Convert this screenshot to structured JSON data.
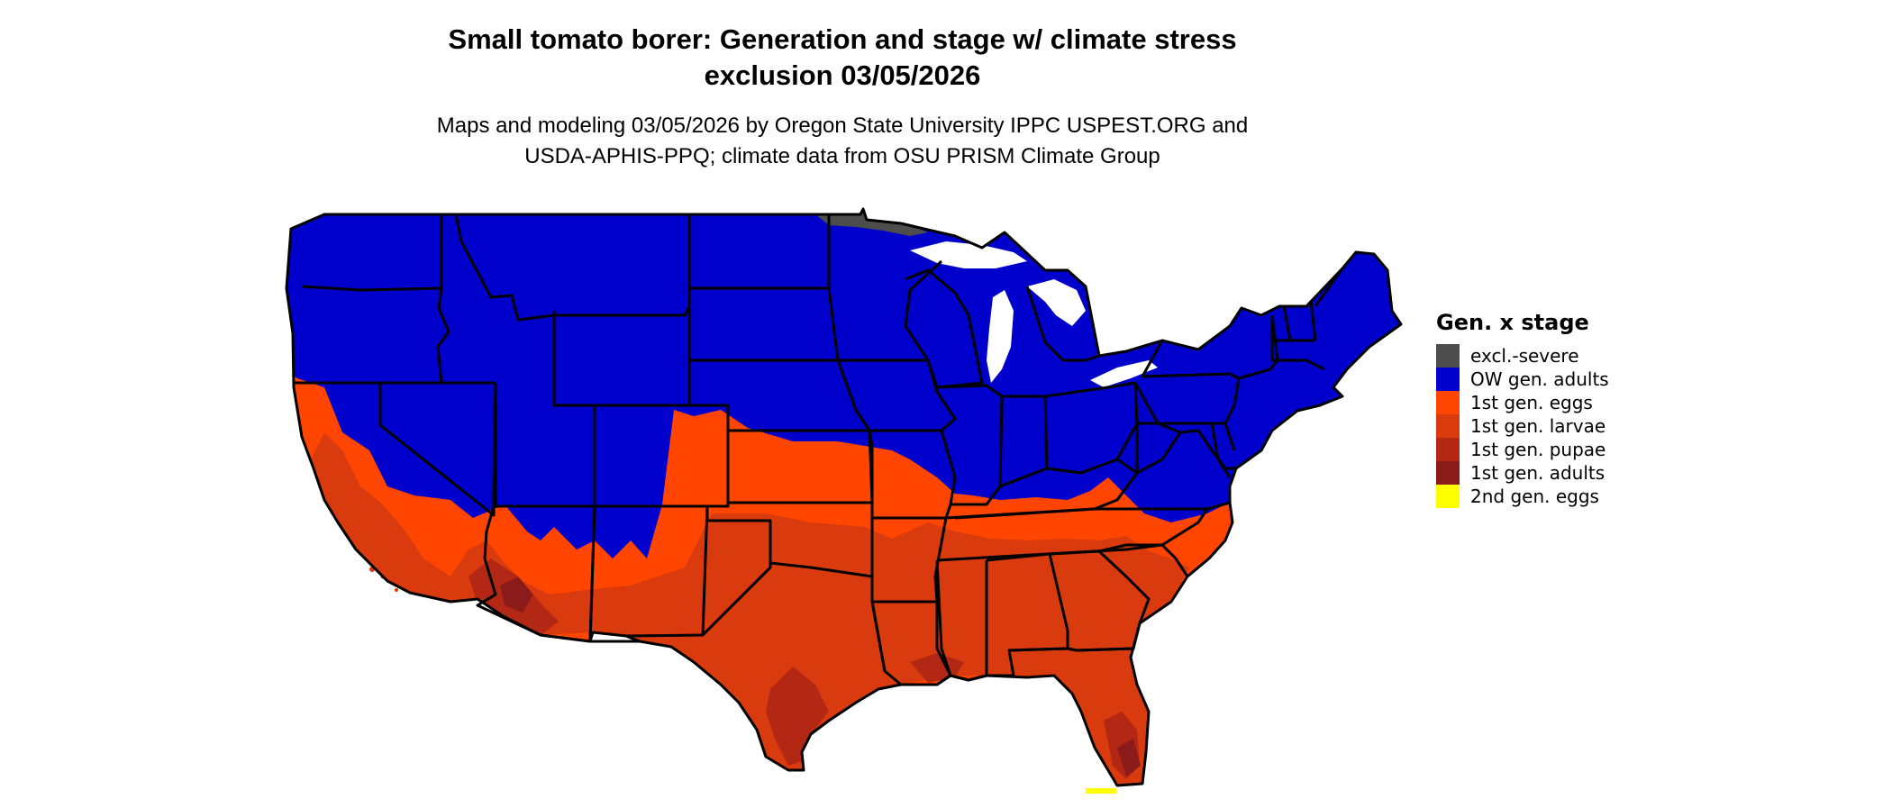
{
  "title": {
    "line1": "Small tomato borer: Generation and stage w/ climate stress",
    "line2": "exclusion 03/05/2026"
  },
  "subtitle": {
    "line1": "Maps and modeling 03/05/2026 by Oregon State University IPPC USPEST.ORG and",
    "line2": "USDA-APHIS-PPQ; climate data from OSU PRISM Climate Group"
  },
  "legend": {
    "title": "Gen. x stage",
    "items": [
      {
        "label": "excl.-severe",
        "color": "#4d4d4d"
      },
      {
        "label": "OW gen. adults",
        "color": "#0000cd"
      },
      {
        "label": "1st gen. eggs",
        "color": "#ff4500"
      },
      {
        "label": "1st gen. larvae",
        "color": "#d93a0e"
      },
      {
        "label": "1st gen. pupae",
        "color": "#b22814"
      },
      {
        "label": "1st gen. adults",
        "color": "#8b1a1a"
      },
      {
        "label": "2nd gen. eggs",
        "color": "#ffff00"
      }
    ]
  },
  "colors": {
    "boundary": "#000000",
    "background": "#ffffff"
  }
}
